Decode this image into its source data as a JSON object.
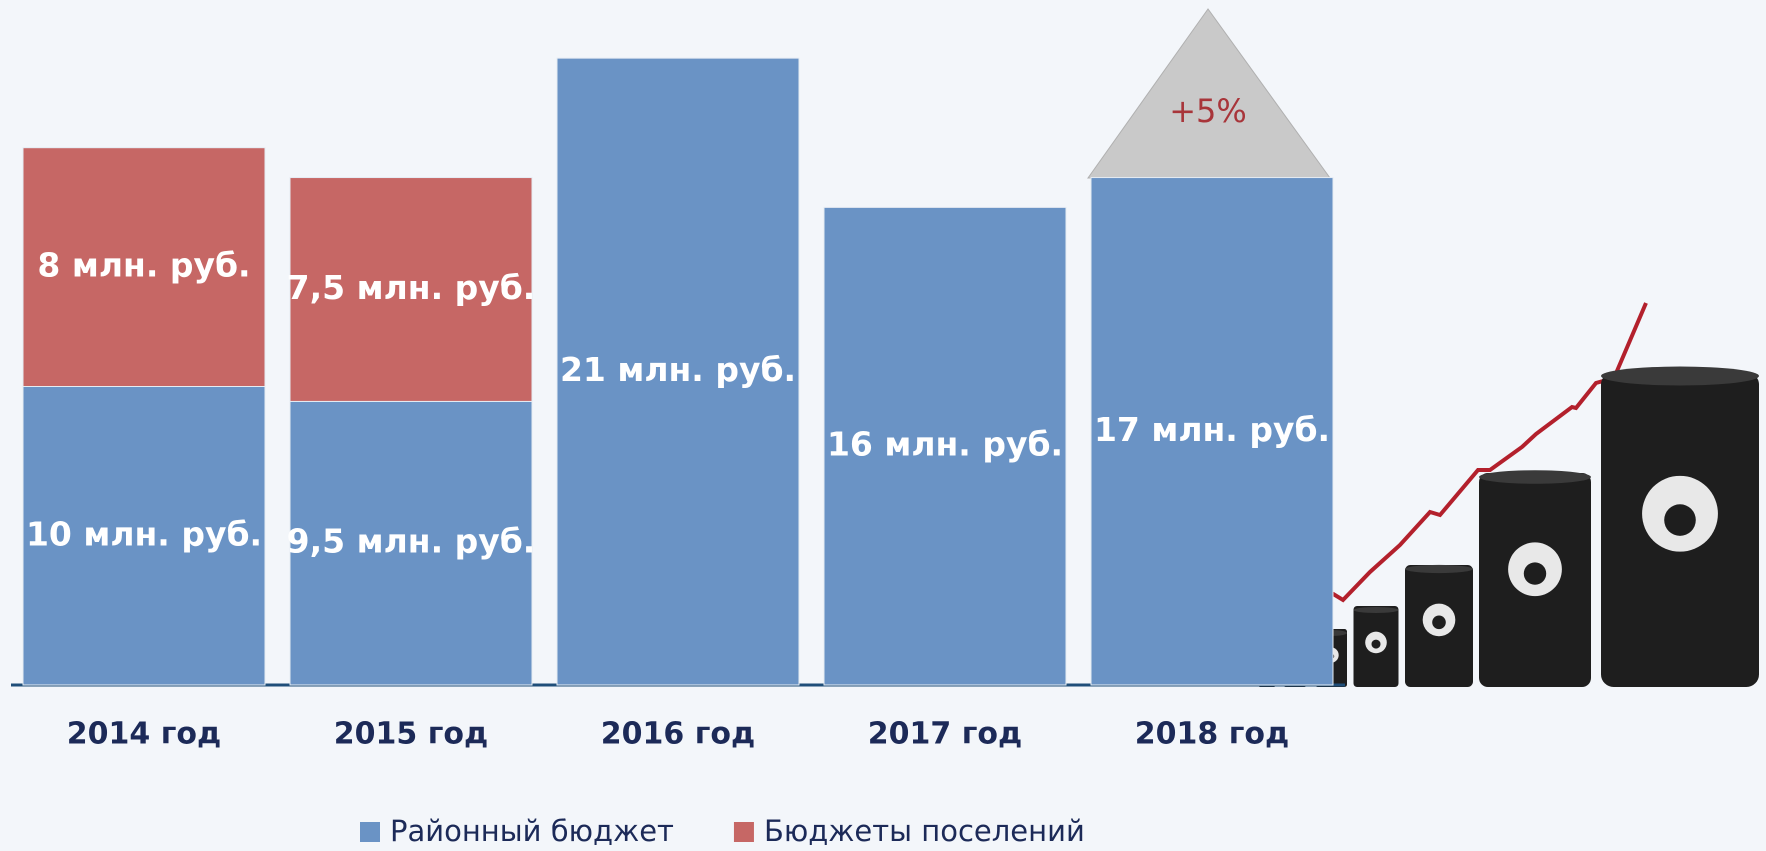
{
  "chart_data": {
    "type": "stacked-bar",
    "categories": [
      "2014 год",
      "2015 год",
      "2016 год",
      "2017 год",
      "2018 год"
    ],
    "series": [
      {
        "name": "Районный бюджет",
        "color": "#6a93c5",
        "values": [
          10,
          9.5,
          21,
          16,
          17
        ],
        "value_labels": [
          "10 млн. руб.",
          "9,5 млн. руб.",
          "21 млн. руб.",
          "16 млн. руб.",
          "17 млн. руб."
        ]
      },
      {
        "name": "Бюджеты поселений",
        "color": "#c66765",
        "values": [
          8,
          7.5,
          null,
          null,
          null
        ],
        "value_labels": [
          "8 млн. руб.",
          "7,5 млн. руб.",
          null,
          null,
          null
        ]
      }
    ],
    "annotation": "+5%"
  }
}
